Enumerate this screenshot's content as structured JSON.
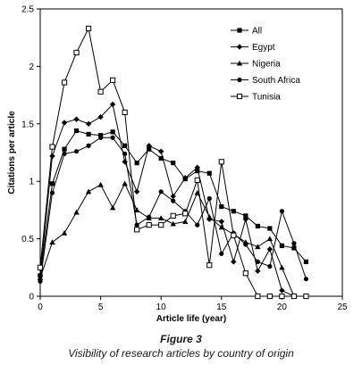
{
  "figure": {
    "label": "Figure 3",
    "caption": "Visibility of research articles by country of origin"
  },
  "chart_data": {
    "type": "line",
    "xlabel": "Article life (year)",
    "ylabel": "Citations per article",
    "xlim": [
      0,
      25
    ],
    "ylim": [
      0,
      2.5
    ],
    "xticks": [
      0,
      5,
      10,
      15,
      20,
      25
    ],
    "yticks": [
      0,
      0.5,
      1,
      1.5,
      2,
      2.5
    ],
    "ytick_labels": [
      "0",
      "0.5",
      "1",
      "1.5",
      "2",
      "2.5"
    ],
    "grid": false,
    "legend_position": "top-right",
    "series": [
      {
        "name": "All",
        "marker": "square",
        "x": [
          0,
          1,
          2,
          3,
          4,
          5,
          6,
          7,
          8,
          9,
          10,
          11,
          12,
          13,
          14,
          15,
          16,
          17,
          18,
          19,
          20,
          21,
          22
        ],
        "y": [
          0.18,
          0.98,
          1.28,
          1.44,
          1.41,
          1.4,
          1.43,
          1.31,
          1.16,
          1.28,
          1.2,
          1.16,
          1.02,
          1.09,
          1.07,
          0.78,
          0.74,
          0.7,
          0.61,
          0.59,
          0.44,
          0.42,
          0.3
        ]
      },
      {
        "name": "Egypt",
        "marker": "diamond",
        "x": [
          0,
          1,
          2,
          3,
          4,
          5,
          6,
          7,
          8,
          9,
          10,
          11,
          12,
          13,
          14,
          15,
          16,
          17,
          18,
          19,
          20,
          21,
          22
        ],
        "y": [
          0.18,
          1.22,
          1.51,
          1.54,
          1.5,
          1.56,
          1.67,
          1.17,
          0.91,
          1.31,
          1.26,
          0.87,
          1.03,
          1.12,
          0.67,
          0.65,
          0.3,
          0.67,
          0.22,
          0.41,
          0.05,
          0.0,
          0.0
        ]
      },
      {
        "name": "Nigeria",
        "marker": "triangle",
        "x": [
          0,
          1,
          2,
          3,
          4,
          5,
          6,
          7,
          8,
          9,
          10,
          11,
          12,
          13,
          14,
          15,
          16,
          17,
          18,
          19,
          20,
          21,
          22
        ],
        "y": [
          0.16,
          0.47,
          0.55,
          0.73,
          0.91,
          0.97,
          0.77,
          0.98,
          0.75,
          0.68,
          0.68,
          0.63,
          0.65,
          0.9,
          0.69,
          0.6,
          0.54,
          0.47,
          0.43,
          0.5,
          0.25,
          0.0,
          0.0
        ]
      },
      {
        "name": "South Africa",
        "marker": "circle",
        "x": [
          0,
          1,
          2,
          3,
          4,
          5,
          6,
          7,
          8,
          9,
          10,
          11,
          12,
          13,
          14,
          15,
          16,
          17,
          18,
          19,
          20,
          21,
          22
        ],
        "y": [
          0.13,
          0.9,
          1.24,
          1.26,
          1.31,
          1.38,
          1.38,
          1.24,
          0.62,
          0.69,
          0.91,
          0.83,
          0.74,
          0.62,
          0.85,
          0.37,
          0.55,
          0.45,
          0.3,
          0.26,
          0.74,
          0.46,
          0.15
        ]
      },
      {
        "name": "Tunisia",
        "marker": "open-square",
        "x": [
          0,
          1,
          2,
          3,
          4,
          5,
          6,
          7,
          8,
          9,
          10,
          11,
          12,
          13,
          14,
          15,
          16,
          17,
          18,
          19,
          20,
          21,
          22
        ],
        "y": [
          0.25,
          1.3,
          1.86,
          2.12,
          2.33,
          1.78,
          1.88,
          1.6,
          0.58,
          0.62,
          0.62,
          0.7,
          0.72,
          1.01,
          0.27,
          1.17,
          0.53,
          0.2,
          0.0,
          0.0,
          0.0,
          0.0,
          0.0
        ]
      }
    ]
  }
}
